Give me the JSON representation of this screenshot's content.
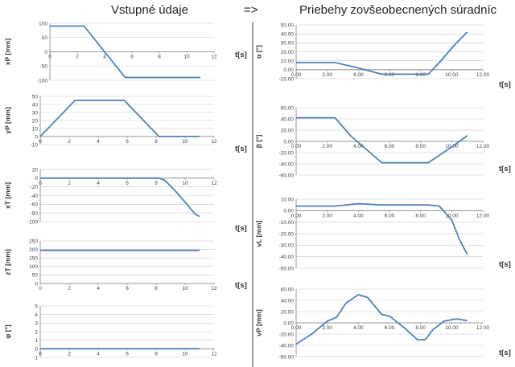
{
  "header": {
    "left_title": "Vstupné údaje",
    "arrow": "=>",
    "right_title": "Priebehy zovšeobecnených súradníc"
  },
  "colors": {
    "line": "#4f81bd",
    "axis": "#808080",
    "grid": "#c8c8c8"
  },
  "chart_data": [
    {
      "id": "xp",
      "type": "line",
      "ylabel": "xP [mm]",
      "xlabel": "t[s]",
      "xlim": [
        0,
        12
      ],
      "xticks": [
        "0",
        "2",
        "4",
        "6",
        "8",
        "10",
        "12"
      ],
      "ylim": [
        -100,
        100
      ],
      "yticks": [
        "-100",
        "-50",
        "0",
        "50",
        "100"
      ],
      "x": [
        0,
        2.5,
        5.5,
        11
      ],
      "y": [
        90,
        90,
        -90,
        -90
      ]
    },
    {
      "id": "yp",
      "type": "line",
      "ylabel": "yP [mm]",
      "xlabel": "t[s]",
      "xlim": [
        0,
        12
      ],
      "xticks": [
        "0",
        "2",
        "4",
        "6",
        "8",
        "10",
        "12"
      ],
      "ylim": [
        -10,
        50
      ],
      "yticks": [
        "-10",
        "0",
        "10",
        "20",
        "30",
        "40",
        "50"
      ],
      "x": [
        0,
        2.4,
        5.8,
        8.2,
        11
      ],
      "y": [
        0,
        45,
        45,
        0,
        0
      ]
    },
    {
      "id": "xt",
      "type": "line",
      "ylabel": "xT [mm]",
      "xlabel": "t[s]",
      "xlim": [
        0,
        12
      ],
      "xticks": [
        "0",
        "2",
        "4",
        "6",
        "8",
        "10",
        "12"
      ],
      "ylim": [
        -100,
        20
      ],
      "yticks": [
        "-100",
        "-80",
        "-60",
        "-40",
        "-20",
        "0",
        "20"
      ],
      "x": [
        0,
        8.2,
        8.6,
        9.2,
        10.0,
        10.7,
        11
      ],
      "y": [
        0,
        0,
        -5,
        -25,
        -55,
        -83,
        -88
      ]
    },
    {
      "id": "zt",
      "type": "line",
      "ylabel": "zT [mm]",
      "xlabel": "t[s]",
      "xlim": [
        0,
        12
      ],
      "xticks": [
        "0",
        "2",
        "4",
        "6",
        "8",
        "10",
        "12"
      ],
      "ylim": [
        0,
        250
      ],
      "yticks": [
        "0",
        "50",
        "100",
        "150",
        "200",
        "250"
      ],
      "x": [
        0,
        11
      ],
      "y": [
        195,
        195
      ]
    },
    {
      "id": "phi",
      "type": "line",
      "ylabel": "φ [°]",
      "xlabel": "",
      "xlim": [
        0,
        12
      ],
      "xticks": [
        "0",
        "2",
        "4",
        "6",
        "8",
        "10",
        "12"
      ],
      "ylim": [
        -1,
        5
      ],
      "yticks": [
        "-1",
        "0",
        "1",
        "2",
        "3",
        "4",
        "5"
      ],
      "x": [
        0,
        11
      ],
      "y": [
        0,
        0
      ]
    },
    {
      "id": "alpha",
      "type": "line",
      "ylabel": "α [°]",
      "xlabel": "t[s]",
      "xlim": [
        0,
        12
      ],
      "xticks": [
        "0.00",
        "2.00",
        "4.00",
        "6.00",
        "8.00",
        "10.00",
        "12.00"
      ],
      "ylim": [
        -10,
        50
      ],
      "yticks": [
        "-10.00",
        "0.00",
        "10.00",
        "20.00",
        "30.00",
        "40.00",
        "50.00"
      ],
      "x": [
        0,
        2.5,
        4.0,
        5.5,
        8.5,
        9.2,
        10.2,
        11
      ],
      "y": [
        8,
        8,
        2,
        -5,
        -5,
        8,
        28,
        42
      ]
    },
    {
      "id": "beta",
      "type": "line",
      "ylabel": "β [°]",
      "xlabel": "t[s]",
      "xlim": [
        0,
        12
      ],
      "xticks": [
        "0.00",
        "2.00",
        "4.00",
        "6.00",
        "8.00",
        "10.00",
        "12.00"
      ],
      "ylim": [
        -60,
        60
      ],
      "yticks": [
        "-60.00",
        "-40.00",
        "-20.00",
        "0.00",
        "20.00",
        "40.00",
        "60.00"
      ],
      "x": [
        0,
        2.5,
        3.5,
        5.5,
        8.5,
        10.0,
        11
      ],
      "y": [
        42,
        42,
        10,
        -38,
        -38,
        -10,
        10
      ]
    },
    {
      "id": "vl",
      "type": "line",
      "ylabel": "vL [mm]",
      "xlabel": "t[s]",
      "xlim": [
        0,
        12
      ],
      "xticks": [
        "0.00",
        "2.00",
        "4.00",
        "6.00",
        "8.00",
        "10.00",
        "12.00"
      ],
      "ylim": [
        -50,
        10
      ],
      "yticks": [
        "-50.00",
        "-40.00",
        "-30.00",
        "-20.00",
        "-10.00",
        "0.00",
        "10.00"
      ],
      "x": [
        0,
        2.5,
        4.0,
        5.5,
        8.5,
        9.2,
        10.0,
        10.5,
        11
      ],
      "y": [
        4,
        4,
        6,
        5,
        5,
        4,
        -8,
        -25,
        -38
      ]
    },
    {
      "id": "vp",
      "type": "line",
      "ylabel": "vP [mm]",
      "xlabel": "t[s]",
      "xlim": [
        0,
        12
      ],
      "xticks": [
        "0.00",
        "2.00",
        "4.00",
        "6.00",
        "8.00",
        "10.00",
        "12.00"
      ],
      "ylim": [
        -60,
        60
      ],
      "yticks": [
        "-60.00",
        "-40.00",
        "-20.00",
        "0.00",
        "20.00",
        "40.00",
        "60.00"
      ],
      "x": [
        0,
        1.0,
        2.0,
        2.6,
        3.2,
        4.0,
        4.6,
        5.2,
        5.5,
        6.0,
        7.0,
        7.8,
        8.3,
        8.8,
        9.5,
        10.3,
        11
      ],
      "y": [
        -38,
        -20,
        3,
        10,
        35,
        50,
        45,
        25,
        15,
        12,
        -10,
        -30,
        -30,
        -12,
        3,
        7,
        4
      ]
    }
  ]
}
